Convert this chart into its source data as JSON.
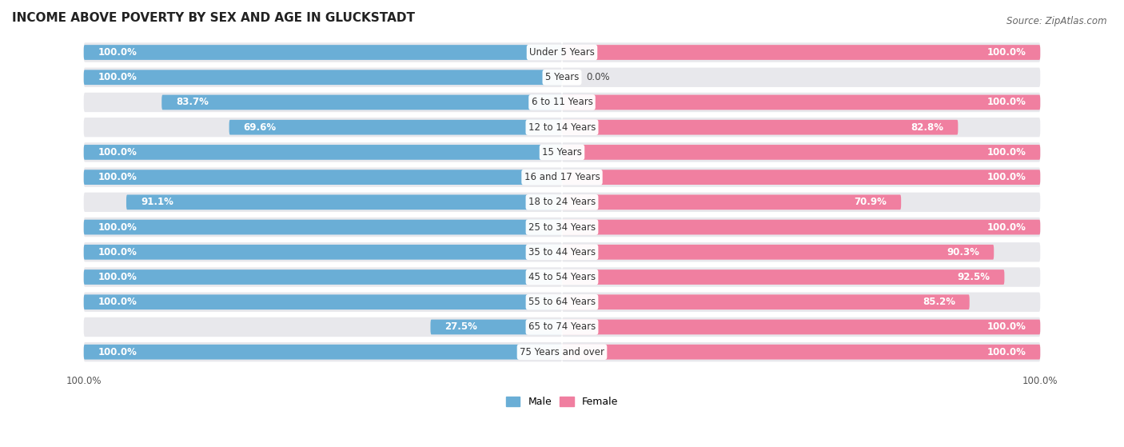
{
  "title": "INCOME ABOVE POVERTY BY SEX AND AGE IN GLUCKSTADT",
  "source": "Source: ZipAtlas.com",
  "categories": [
    "Under 5 Years",
    "5 Years",
    "6 to 11 Years",
    "12 to 14 Years",
    "15 Years",
    "16 and 17 Years",
    "18 to 24 Years",
    "25 to 34 Years",
    "35 to 44 Years",
    "45 to 54 Years",
    "55 to 64 Years",
    "65 to 74 Years",
    "75 Years and over"
  ],
  "male": [
    100.0,
    100.0,
    83.7,
    69.6,
    100.0,
    100.0,
    91.1,
    100.0,
    100.0,
    100.0,
    100.0,
    27.5,
    100.0
  ],
  "female": [
    100.0,
    0.0,
    100.0,
    82.8,
    100.0,
    100.0,
    70.9,
    100.0,
    90.3,
    92.5,
    85.2,
    100.0,
    100.0
  ],
  "male_color": "#6aaed6",
  "female_color": "#f07fa0",
  "bg_color": "#e8e8ec",
  "bar_height": 0.6,
  "title_fontsize": 11,
  "label_fontsize": 8.5,
  "category_fontsize": 8.5,
  "axis_label_fontsize": 8.5,
  "source_fontsize": 8.5,
  "xlim_left": -115,
  "xlim_right": 115
}
